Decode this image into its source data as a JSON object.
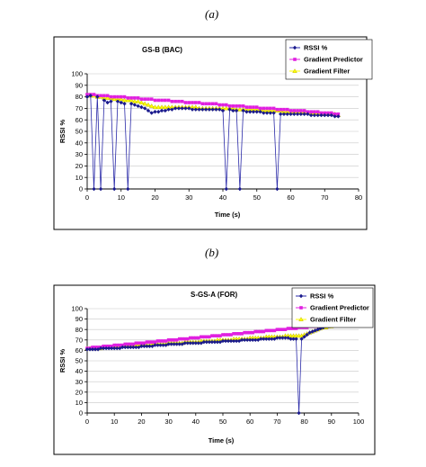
{
  "panel_labels": [
    "(a)",
    "(b)"
  ],
  "colors": {
    "rssi": "#1a1a8c",
    "predictor": "#e020e0",
    "filter": "#ffff00",
    "filter_edge": "#b3a800",
    "rssi_line": "#2a2aa8",
    "frame": "#000000"
  },
  "chart_data": [
    {
      "type": "line",
      "title": "GS-B (BAC)",
      "xlabel": "Time (s)",
      "ylabel": "RSSI %",
      "xlim": [
        0,
        80
      ],
      "ylim": [
        0,
        100
      ],
      "xticks": [
        0,
        10,
        20,
        30,
        40,
        50,
        60,
        70,
        80
      ],
      "yticks": [
        0,
        10,
        20,
        30,
        40,
        50,
        60,
        70,
        80,
        90,
        100
      ],
      "grid": "horizontal",
      "legend": "top-right",
      "series": [
        {
          "name": "RSSI %",
          "marker": "diamond",
          "color": "#1a1a8c",
          "x": [
            0,
            1,
            2,
            3,
            4,
            5,
            6,
            7,
            8,
            9,
            10,
            11,
            12,
            13,
            14,
            15,
            16,
            17,
            18,
            19,
            20,
            21,
            22,
            23,
            24,
            25,
            26,
            27,
            28,
            29,
            30,
            31,
            32,
            33,
            34,
            35,
            36,
            37,
            38,
            39,
            40,
            41,
            42,
            43,
            44,
            45,
            46,
            47,
            48,
            49,
            50,
            51,
            52,
            53,
            54,
            55,
            56,
            57,
            58,
            59,
            60,
            61,
            62,
            63,
            64,
            65,
            66,
            67,
            68,
            69,
            70,
            71,
            72,
            73,
            74
          ],
          "y": [
            80,
            81,
            0,
            80,
            0,
            77,
            75,
            76,
            0,
            76,
            75,
            74,
            0,
            74,
            73,
            72,
            71,
            70,
            68,
            66,
            67,
            67,
            68,
            68,
            69,
            69,
            70,
            70,
            70,
            70,
            70,
            69,
            69,
            69,
            69,
            69,
            69,
            69,
            69,
            69,
            68,
            0,
            69,
            68,
            68,
            0,
            68,
            67,
            67,
            67,
            67,
            67,
            66,
            66,
            66,
            66,
            0,
            65,
            65,
            65,
            65,
            65,
            65,
            65,
            65,
            65,
            64,
            64,
            64,
            64,
            64,
            64,
            64,
            63,
            63
          ]
        },
        {
          "name": "Gradient Predictor",
          "marker": "square",
          "color": "#e020e0",
          "x": [
            0,
            1,
            2,
            3,
            4,
            5,
            6,
            7,
            8,
            9,
            10,
            11,
            12,
            13,
            14,
            15,
            16,
            17,
            18,
            19,
            20,
            21,
            22,
            23,
            24,
            25,
            26,
            27,
            28,
            29,
            30,
            31,
            32,
            33,
            34,
            35,
            36,
            37,
            38,
            39,
            40,
            41,
            42,
            43,
            44,
            45,
            46,
            47,
            48,
            49,
            50,
            51,
            52,
            53,
            54,
            55,
            56,
            57,
            58,
            59,
            60,
            61,
            62,
            63,
            64,
            65,
            66,
            67,
            68,
            69,
            70,
            71,
            72,
            73,
            74
          ],
          "y": [
            82,
            82,
            82,
            81,
            81,
            81,
            81,
            80,
            80,
            80,
            80,
            80,
            79,
            79,
            79,
            79,
            78,
            78,
            78,
            78,
            77,
            77,
            77,
            77,
            77,
            76,
            76,
            76,
            76,
            75,
            75,
            75,
            75,
            75,
            74,
            74,
            74,
            74,
            74,
            73,
            73,
            73,
            72,
            72,
            72,
            72,
            72,
            71,
            71,
            71,
            71,
            70,
            70,
            70,
            70,
            70,
            69,
            69,
            69,
            69,
            68,
            68,
            68,
            68,
            68,
            67,
            67,
            67,
            67,
            66,
            66,
            66,
            66,
            65,
            65
          ]
        },
        {
          "name": "Gradient Filter",
          "marker": "triangle",
          "color": "#ffff00",
          "x": [
            0,
            1,
            2,
            3,
            4,
            5,
            6,
            7,
            8,
            9,
            10,
            11,
            12,
            13,
            14,
            15,
            16,
            17,
            18,
            19,
            20,
            21,
            22,
            23,
            24,
            25,
            26,
            27,
            28,
            29,
            30,
            31,
            32,
            33,
            34,
            35,
            36,
            37,
            38,
            39,
            40,
            41,
            42,
            43,
            44,
            45,
            46,
            47,
            48,
            49,
            50,
            51,
            52,
            53,
            54,
            55,
            56,
            57,
            58,
            59,
            60,
            61,
            62,
            63,
            64,
            65,
            66,
            67,
            68,
            69,
            70,
            71,
            72,
            73,
            74
          ],
          "y": [
            81,
            81,
            81,
            80,
            80,
            79,
            79,
            79,
            78,
            78,
            78,
            77,
            77,
            77,
            76,
            76,
            75,
            74,
            73,
            72,
            71,
            71,
            71,
            71,
            71,
            71,
            71,
            71,
            71,
            71,
            71,
            71,
            71,
            70,
            70,
            70,
            70,
            70,
            70,
            70,
            70,
            70,
            70,
            70,
            69,
            69,
            69,
            69,
            69,
            69,
            69,
            69,
            68,
            68,
            68,
            68,
            68,
            68,
            67,
            67,
            67,
            67,
            67,
            67,
            66,
            66,
            66,
            66,
            66,
            65,
            65,
            65,
            65,
            65,
            64
          ]
        }
      ]
    },
    {
      "type": "line",
      "title": "S-GS-A (FOR)",
      "xlabel": "Time (s)",
      "ylabel": "RSSI %",
      "xlim": [
        0,
        100
      ],
      "ylim": [
        0,
        100
      ],
      "xticks": [
        0,
        10,
        20,
        30,
        40,
        50,
        60,
        70,
        80,
        90,
        100
      ],
      "yticks": [
        0,
        10,
        20,
        30,
        40,
        50,
        60,
        70,
        80,
        90,
        100
      ],
      "grid": "horizontal",
      "legend": "top-right",
      "series": [
        {
          "name": "RSSI %",
          "marker": "diamond",
          "color": "#1a1a8c",
          "x": [
            0,
            1,
            2,
            3,
            4,
            5,
            6,
            7,
            8,
            9,
            10,
            11,
            12,
            13,
            14,
            15,
            16,
            17,
            18,
            19,
            20,
            21,
            22,
            23,
            24,
            25,
            26,
            27,
            28,
            29,
            30,
            31,
            32,
            33,
            34,
            35,
            36,
            37,
            38,
            39,
            40,
            41,
            42,
            43,
            44,
            45,
            46,
            47,
            48,
            49,
            50,
            51,
            52,
            53,
            54,
            55,
            56,
            57,
            58,
            59,
            60,
            61,
            62,
            63,
            64,
            65,
            66,
            67,
            68,
            69,
            70,
            71,
            72,
            73,
            74,
            75,
            76,
            77,
            78,
            79,
            80,
            81,
            82,
            83,
            84,
            85,
            86,
            87,
            88,
            89,
            90,
            91
          ],
          "y": [
            61,
            61,
            61,
            61,
            61,
            62,
            62,
            62,
            62,
            62,
            62,
            62,
            62,
            63,
            63,
            63,
            63,
            63,
            63,
            63,
            64,
            64,
            64,
            64,
            64,
            65,
            65,
            65,
            65,
            65,
            66,
            66,
            66,
            66,
            66,
            66,
            67,
            67,
            67,
            67,
            67,
            67,
            67,
            68,
            68,
            68,
            68,
            68,
            68,
            68,
            69,
            69,
            69,
            69,
            69,
            69,
            69,
            70,
            70,
            70,
            70,
            70,
            70,
            70,
            71,
            71,
            71,
            71,
            71,
            71,
            72,
            72,
            72,
            72,
            72,
            71,
            71,
            71,
            0,
            71,
            73,
            75,
            77,
            78,
            79,
            80,
            81,
            82,
            83,
            83,
            84,
            84
          ]
        },
        {
          "name": "Gradient Predictor",
          "marker": "square",
          "color": "#e020e0",
          "x": [
            0,
            1,
            2,
            3,
            4,
            5,
            6,
            7,
            8,
            9,
            10,
            11,
            12,
            13,
            14,
            15,
            16,
            17,
            18,
            19,
            20,
            21,
            22,
            23,
            24,
            25,
            26,
            27,
            28,
            29,
            30,
            31,
            32,
            33,
            34,
            35,
            36,
            37,
            38,
            39,
            40,
            41,
            42,
            43,
            44,
            45,
            46,
            47,
            48,
            49,
            50,
            51,
            52,
            53,
            54,
            55,
            56,
            57,
            58,
            59,
            60,
            61,
            62,
            63,
            64,
            65,
            66,
            67,
            68,
            69,
            70,
            71,
            72,
            73,
            74,
            75,
            76,
            77,
            78,
            79,
            80,
            81,
            82,
            83,
            84,
            85,
            86,
            87,
            88,
            89,
            90,
            91
          ],
          "y": [
            62,
            62,
            63,
            63,
            63,
            63,
            64,
            64,
            64,
            64,
            65,
            65,
            65,
            65,
            66,
            66,
            66,
            66,
            67,
            67,
            67,
            67,
            68,
            68,
            68,
            68,
            69,
            69,
            69,
            69,
            70,
            70,
            70,
            70,
            71,
            71,
            71,
            71,
            72,
            72,
            72,
            72,
            73,
            73,
            73,
            73,
            74,
            74,
            74,
            74,
            75,
            75,
            75,
            75,
            76,
            76,
            76,
            76,
            77,
            77,
            77,
            77,
            78,
            78,
            78,
            78,
            79,
            79,
            79,
            79,
            80,
            80,
            80,
            80,
            81,
            81,
            81,
            81,
            82,
            82,
            82,
            82,
            83,
            83,
            83,
            83,
            84,
            84,
            84,
            84,
            85,
            85
          ]
        },
        {
          "name": "Gradient Filter",
          "marker": "triangle",
          "color": "#ffff00",
          "x": [
            0,
            1,
            2,
            3,
            4,
            5,
            6,
            7,
            8,
            9,
            10,
            11,
            12,
            13,
            14,
            15,
            16,
            17,
            18,
            19,
            20,
            21,
            22,
            23,
            24,
            25,
            26,
            27,
            28,
            29,
            30,
            31,
            32,
            33,
            34,
            35,
            36,
            37,
            38,
            39,
            40,
            41,
            42,
            43,
            44,
            45,
            46,
            47,
            48,
            49,
            50,
            51,
            52,
            53,
            54,
            55,
            56,
            57,
            58,
            59,
            60,
            61,
            62,
            63,
            64,
            65,
            66,
            67,
            68,
            69,
            70,
            71,
            72,
            73,
            74,
            75,
            76,
            77,
            78,
            79,
            80,
            81,
            82,
            83,
            84,
            85,
            86,
            87,
            88,
            89,
            90,
            91
          ],
          "y": [
            62,
            62,
            62,
            62,
            62,
            62,
            63,
            63,
            63,
            63,
            63,
            63,
            64,
            64,
            64,
            64,
            64,
            64,
            65,
            65,
            65,
            65,
            65,
            65,
            66,
            66,
            66,
            66,
            66,
            66,
            67,
            67,
            67,
            67,
            67,
            67,
            68,
            68,
            68,
            68,
            68,
            68,
            69,
            69,
            69,
            69,
            69,
            69,
            70,
            70,
            70,
            70,
            70,
            70,
            71,
            71,
            71,
            71,
            71,
            71,
            72,
            72,
            72,
            72,
            72,
            72,
            73,
            73,
            73,
            73,
            73,
            73,
            73,
            74,
            74,
            74,
            74,
            74,
            74,
            74,
            75,
            76,
            77,
            78,
            79,
            80,
            81,
            82,
            82,
            83,
            83,
            84
          ]
        }
      ]
    }
  ]
}
